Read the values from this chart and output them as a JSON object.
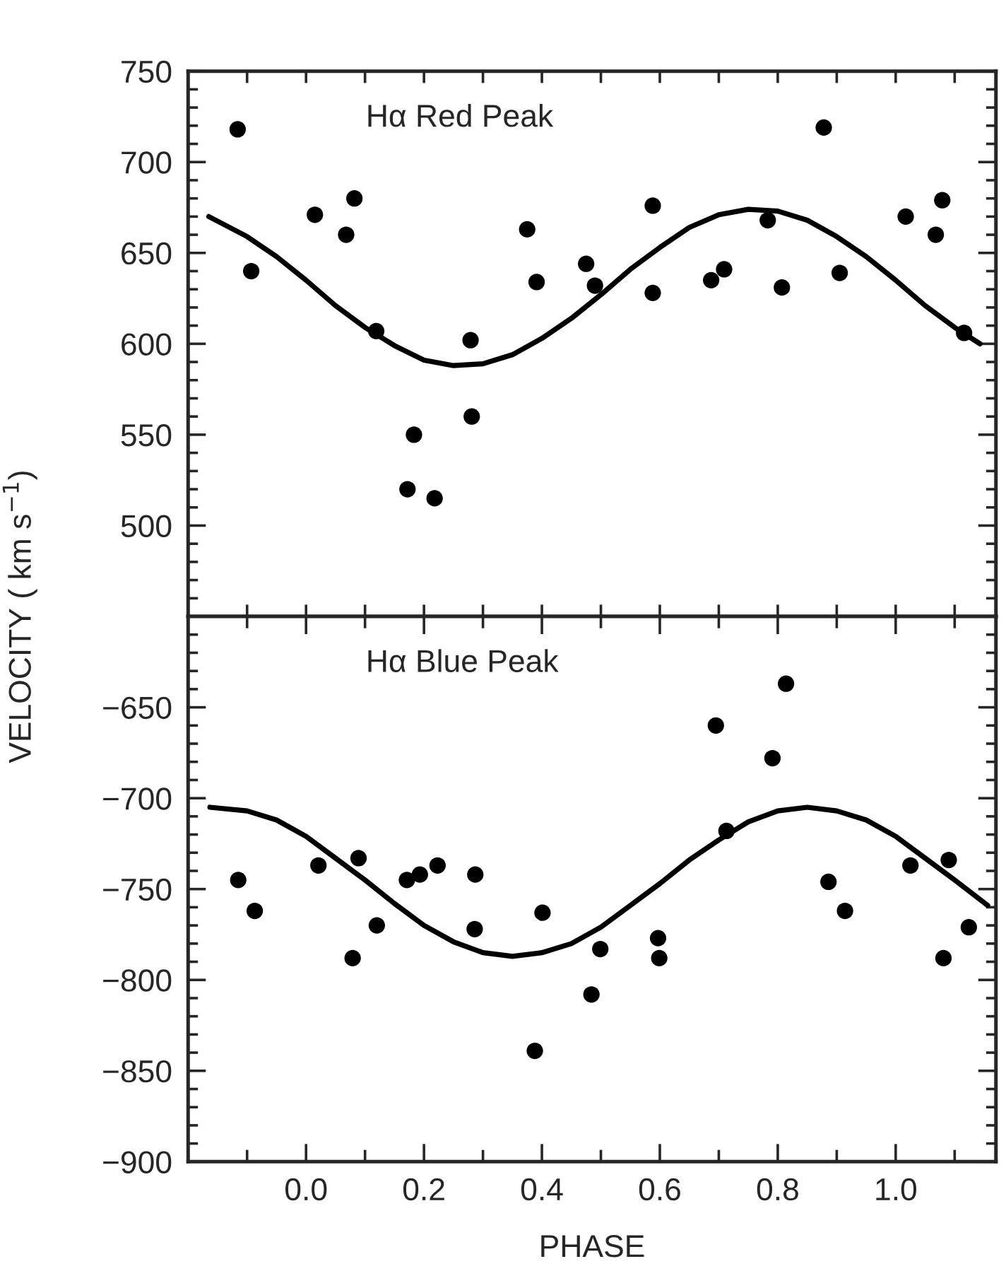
{
  "chart_data": [
    {
      "type": "scatter",
      "ylabel": "VELOCITY ( km s$^{−1}$)",
      "annotations": [
        "Hα Red Peak"
      ],
      "xlim": [
        -0.2,
        1.17
      ],
      "ylim": [
        450,
        750
      ],
      "tick_labels": "y",
      "grid": false,
      "legend": false,
      "xticks": [
        {
          "value": -0.1,
          "label": null
        },
        {
          "value": 0,
          "label": null
        },
        {
          "value": 0.1,
          "label": null
        },
        {
          "value": 0.2,
          "label": null
        },
        {
          "value": 0.3,
          "label": null
        },
        {
          "value": 0.4,
          "label": null
        },
        {
          "value": 0.5,
          "label": null
        },
        {
          "value": 0.6,
          "label": null
        },
        {
          "value": 0.7,
          "label": null
        },
        {
          "value": 0.8,
          "label": null
        },
        {
          "value": 0.9,
          "label": null
        },
        {
          "value": 1.0,
          "label": null
        },
        {
          "value": 1.1,
          "label": null
        }
      ],
      "yticks": [
        {
          "value": 460,
          "label": null
        },
        {
          "value": 470,
          "label": null
        },
        {
          "value": 480,
          "label": null
        },
        {
          "value": 490,
          "label": null
        },
        500,
        {
          "value": 510,
          "label": null
        },
        {
          "value": 520,
          "label": null
        },
        {
          "value": 530,
          "label": null
        },
        {
          "value": 540,
          "label": null
        },
        550,
        {
          "value": 560,
          "label": null
        },
        {
          "value": 570,
          "label": null
        },
        {
          "value": 580,
          "label": null
        },
        {
          "value": 590,
          "label": null
        },
        600,
        {
          "value": 610,
          "label": null
        },
        {
          "value": 620,
          "label": null
        },
        {
          "value": 630,
          "label": null
        },
        {
          "value": 640,
          "label": null
        },
        650,
        {
          "value": 660,
          "label": null
        },
        {
          "value": 670,
          "label": null
        },
        {
          "value": 680,
          "label": null
        },
        {
          "value": 690,
          "label": null
        },
        700,
        {
          "value": 710,
          "label": null
        },
        {
          "value": 720,
          "label": null
        },
        {
          "value": 730,
          "label": null
        },
        {
          "value": 740,
          "label": null
        },
        750
      ],
      "series": [
        {
          "type": "scatter",
          "marker": "circle",
          "color": "#000000",
          "x": [
            -0.116,
            -0.093,
            0.015,
            0.068,
            0.082,
            0.119,
            0.172,
            0.183,
            0.218,
            0.279,
            0.281,
            0.375,
            0.391,
            0.475,
            0.49,
            0.588,
            0.588,
            0.687,
            0.709,
            0.783,
            0.807,
            0.878,
            0.905,
            1.017,
            1.068,
            1.079,
            1.116
          ],
          "values": [
            718,
            640,
            671,
            660,
            680,
            607,
            520,
            550,
            515,
            602,
            560,
            663,
            634,
            644,
            632,
            676,
            628,
            635,
            641,
            668,
            631,
            719,
            639,
            670,
            660,
            679,
            606
          ]
        },
        {
          "type": "line",
          "marker": "none",
          "line_style": "solid",
          "color": "#000000",
          "x": [
            -0.165,
            -0.1,
            -0.05,
            0.0,
            0.05,
            0.1,
            0.15,
            0.2,
            0.25,
            0.3,
            0.35,
            0.4,
            0.45,
            0.5,
            0.55,
            0.6,
            0.65,
            0.7,
            0.75,
            0.8,
            0.85,
            0.9,
            0.95,
            1.0,
            1.05,
            1.1,
            1.143
          ],
          "values": [
            670,
            659,
            648,
            635,
            621,
            609,
            599,
            591,
            588,
            589,
            594,
            603,
            614,
            627,
            641,
            653,
            664,
            671,
            674,
            673,
            668,
            659,
            648,
            635,
            621,
            609,
            600
          ]
        }
      ]
    },
    {
      "type": "scatter",
      "xlabel": "PHASE",
      "annotations": [
        "Hα Blue Peak"
      ],
      "xlim": [
        -0.2,
        1.17
      ],
      "ylim": [
        -900,
        -600
      ],
      "grid": false,
      "legend": false,
      "xticks": [
        {
          "value": -0.1,
          "label": null
        },
        {
          "value": 0,
          "label": "0.0"
        },
        {
          "value": 0.1,
          "label": null
        },
        {
          "value": 0.2,
          "label": "0.2"
        },
        {
          "value": 0.3,
          "label": null
        },
        {
          "value": 0.4,
          "label": "0.4"
        },
        {
          "value": 0.5,
          "label": null
        },
        {
          "value": 0.6,
          "label": "0.6"
        },
        {
          "value": 0.7,
          "label": null
        },
        {
          "value": 0.8,
          "label": "0.8"
        },
        {
          "value": 0.9,
          "label": null
        },
        {
          "value": 1.0,
          "label": "1.0"
        },
        {
          "value": 1.1,
          "label": null
        }
      ],
      "yticks": [
        {
          "value": -900,
          "label": "−900"
        },
        {
          "value": -890,
          "label": null
        },
        {
          "value": -880,
          "label": null
        },
        {
          "value": -870,
          "label": null
        },
        {
          "value": -860,
          "label": null
        },
        {
          "value": -850,
          "label": "−850"
        },
        {
          "value": -840,
          "label": null
        },
        {
          "value": -830,
          "label": null
        },
        {
          "value": -820,
          "label": null
        },
        {
          "value": -810,
          "label": null
        },
        {
          "value": -800,
          "label": "−800"
        },
        {
          "value": -790,
          "label": null
        },
        {
          "value": -780,
          "label": null
        },
        {
          "value": -770,
          "label": null
        },
        {
          "value": -760,
          "label": null
        },
        {
          "value": -750,
          "label": "−750"
        },
        {
          "value": -740,
          "label": null
        },
        {
          "value": -730,
          "label": null
        },
        {
          "value": -720,
          "label": null
        },
        {
          "value": -710,
          "label": null
        },
        {
          "value": -700,
          "label": "−700"
        },
        {
          "value": -690,
          "label": null
        },
        {
          "value": -680,
          "label": null
        },
        {
          "value": -670,
          "label": null
        },
        {
          "value": -660,
          "label": null
        },
        {
          "value": -650,
          "label": "−650"
        },
        {
          "value": -640,
          "label": null
        },
        {
          "value": -630,
          "label": null
        },
        {
          "value": -620,
          "label": null
        },
        {
          "value": -610,
          "label": null
        }
      ],
      "series": [
        {
          "type": "scatter",
          "marker": "circle",
          "color": "#000000",
          "x": [
            -0.115,
            -0.087,
            0.021,
            0.079,
            0.089,
            0.12,
            0.171,
            0.193,
            0.223,
            0.287,
            0.286,
            0.388,
            0.401,
            0.484,
            0.499,
            0.597,
            0.599,
            0.695,
            0.713,
            0.791,
            0.814,
            0.886,
            0.914,
            1.025,
            1.081,
            1.09,
            1.124
          ],
          "values": [
            -745,
            -762,
            -737,
            -788,
            -733,
            -770,
            -745,
            -742,
            -737,
            -742,
            -772,
            -839,
            -763,
            -808,
            -783,
            -777,
            -788,
            -660,
            -718,
            -678,
            -637,
            -746,
            -762,
            -737,
            -788,
            -734,
            -771
          ]
        },
        {
          "type": "line",
          "marker": "none",
          "line_style": "solid",
          "color": "#000000",
          "x": [
            -0.163,
            -0.1,
            -0.05,
            0.0,
            0.05,
            0.1,
            0.15,
            0.2,
            0.25,
            0.3,
            0.35,
            0.4,
            0.45,
            0.5,
            0.55,
            0.6,
            0.65,
            0.7,
            0.75,
            0.8,
            0.85,
            0.9,
            0.95,
            1.0,
            1.05,
            1.1,
            1.156
          ],
          "values": [
            -705,
            -707,
            -712,
            -721,
            -733,
            -745,
            -758,
            -770,
            -779,
            -785,
            -787,
            -785,
            -780,
            -771,
            -759,
            -747,
            -734,
            -723,
            -713,
            -707,
            -705,
            -707,
            -712,
            -721,
            -733,
            -745,
            -759
          ]
        }
      ]
    }
  ]
}
